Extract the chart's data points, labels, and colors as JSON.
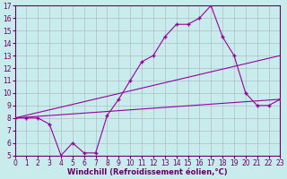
{
  "xlabel": "Windchill (Refroidissement éolien,°C)",
  "background_color": "#c8ecec",
  "line_color": "#990099",
  "grid_color": "#b0b0c0",
  "line1_x": [
    0,
    1,
    2,
    3,
    4,
    5,
    6,
    7,
    8,
    9,
    10,
    11,
    12,
    13,
    14,
    15,
    16,
    17,
    18,
    19,
    20,
    21,
    22,
    23
  ],
  "line1_y": [
    8,
    8,
    8,
    7.5,
    5,
    6.0,
    5.2,
    5.2,
    8.2,
    9.5,
    11,
    12.5,
    13,
    14.5,
    15.5,
    15.5,
    16,
    17,
    14.5,
    13,
    10,
    9,
    9,
    9.5
  ],
  "line2_x": [
    0,
    23
  ],
  "line2_y": [
    8,
    13
  ],
  "line3_x": [
    0,
    23
  ],
  "line3_y": [
    8,
    9.5
  ],
  "ylim": [
    5,
    17
  ],
  "xlim": [
    0,
    23
  ],
  "yticks": [
    5,
    6,
    7,
    8,
    9,
    10,
    11,
    12,
    13,
    14,
    15,
    16,
    17
  ],
  "xticks": [
    0,
    1,
    2,
    3,
    4,
    5,
    6,
    7,
    8,
    9,
    10,
    11,
    12,
    13,
    14,
    15,
    16,
    17,
    18,
    19,
    20,
    21,
    22,
    23
  ],
  "tick_fontsize": 5.5,
  "label_fontsize": 6.0,
  "label_color": "#660066",
  "spine_color": "#660066"
}
